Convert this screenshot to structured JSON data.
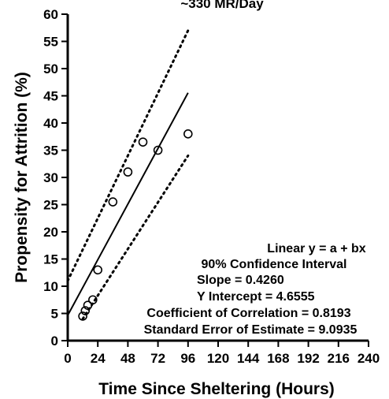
{
  "chart_data": {
    "type": "scatter",
    "title": "~330 MR/Day",
    "xlabel": "Time Since Sheltering (Hours)",
    "ylabel": "Propensity for Attrition (%)",
    "xlim": [
      0,
      240
    ],
    "ylim": [
      0,
      60
    ],
    "x_ticks": [
      0,
      24,
      48,
      72,
      96,
      120,
      144,
      168,
      192,
      216,
      240
    ],
    "y_ticks": [
      0,
      5,
      10,
      15,
      20,
      25,
      30,
      35,
      40,
      45,
      50,
      55,
      60
    ],
    "points": [
      {
        "x": 12,
        "y": 4.5
      },
      {
        "x": 14,
        "y": 5.5
      },
      {
        "x": 16,
        "y": 6.5
      },
      {
        "x": 20,
        "y": 7.5
      },
      {
        "x": 24,
        "y": 13
      },
      {
        "x": 36,
        "y": 25.5
      },
      {
        "x": 48,
        "y": 31
      },
      {
        "x": 60,
        "y": 36.5
      },
      {
        "x": 72,
        "y": 35
      },
      {
        "x": 96,
        "y": 38
      }
    ],
    "fit_line": {
      "x": [
        0,
        96
      ],
      "y": [
        4.6555,
        45.55
      ]
    },
    "upper_band": {
      "x": [
        0,
        96
      ],
      "y": [
        11,
        57
      ]
    },
    "lower_band": {
      "x": [
        12,
        96
      ],
      "y": [
        4,
        34
      ]
    },
    "annotations": [
      "Linear y = a + bx",
      "90% Confidence Interval",
      "Slope = 0.4260",
      "Y Intercept = 4.6555",
      "Coefficient of Correlation = 0.8193",
      "Standard Error of Estimate = 9.0935"
    ],
    "grid": false,
    "legend": "none"
  }
}
